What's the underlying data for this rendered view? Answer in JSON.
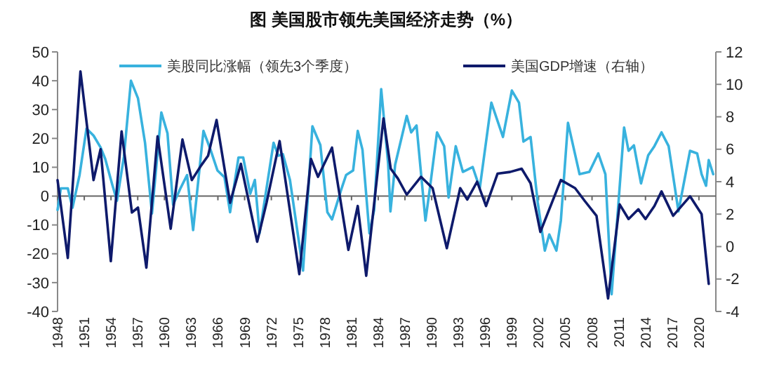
{
  "chart_data": {
    "type": "line",
    "title": "图  美国股市领先美国经济走势（%）",
    "legend": "top",
    "xlim": [
      1948,
      2021.9
    ],
    "xticks": [
      1948,
      1951,
      1954,
      1957,
      1960,
      1963,
      1966,
      1969,
      1972,
      1975,
      1978,
      1981,
      1984,
      1987,
      1990,
      1993,
      1996,
      1999,
      2002,
      2005,
      2008,
      2011,
      2014,
      2017,
      2020
    ],
    "ylim": [
      -40,
      50
    ],
    "yticks": [
      -40,
      -30,
      -20,
      -10,
      0,
      10,
      20,
      30,
      40,
      50
    ],
    "y2lim": [
      -4,
      12
    ],
    "y2ticks": [
      -4,
      -2,
      0,
      2,
      4,
      6,
      8,
      10,
      12
    ],
    "series": [
      {
        "name": "美股同比涨幅（领先3个季度）",
        "color": "#38b2de",
        "x": [
          1948.0,
          1948.37,
          1949.15,
          1949.68,
          1950.47,
          1951.25,
          1952.04,
          1952.83,
          1953.35,
          1954.14,
          1954.67,
          1955.45,
          1956.24,
          1957.03,
          1957.82,
          1958.6,
          1959.65,
          1960.34,
          1960.97,
          1961.75,
          1962.54,
          1963.22,
          1964.38,
          1965.17,
          1965.95,
          1966.74,
          1967.37,
          1968.31,
          1968.84,
          1969.63,
          1970.15,
          1970.68,
          1972.25,
          1972.78,
          1973.3,
          1974.09,
          1975.56,
          1976.61,
          1977.5,
          1978.29,
          1978.81,
          1979.86,
          1980.39,
          1981.18,
          1981.7,
          1982.23,
          1983.01,
          1983.54,
          1984.33,
          1985.11,
          1985.37,
          1985.9,
          1987.2,
          1987.7,
          1988.3,
          1989.3,
          1989.8,
          1990.6,
          1991.4,
          1991.9,
          1992.7,
          1993.5,
          1994.6,
          1995.4,
          1996.7,
          1998.0,
          1999.0,
          1999.8,
          2000.3,
          2001.1,
          2001.9,
          2002.7,
          2003.2,
          2004.0,
          2004.5,
          2005.3,
          2006.6,
          2007.7,
          2008.7,
          2009.5,
          2010.2,
          2011.6,
          2012.1,
          2012.7,
          2013.5,
          2014.3,
          2015.0,
          2015.8,
          2016.6,
          2017.7,
          2019.0,
          2019.8,
          2020.3,
          2020.8,
          2021.1,
          2021.6
        ],
        "values": [
          -4.8,
          2.7,
          2.7,
          -4,
          7.3,
          23.4,
          21,
          16.9,
          12.9,
          4,
          -1.6,
          13.7,
          40,
          33.9,
          18.5,
          -6,
          29,
          21.8,
          -3,
          2.4,
          7.3,
          -11.8,
          22.6,
          16.1,
          8.9,
          6.5,
          -5.6,
          13.4,
          13.4,
          0.8,
          5.6,
          -12.9,
          18.5,
          14,
          14.5,
          5.6,
          -25.8,
          24.2,
          17.7,
          -5.6,
          -8.1,
          2.4,
          7.3,
          8.9,
          22.6,
          16.1,
          -12.9,
          -4.8,
          37.1,
          11.3,
          -5.3,
          10.9,
          27.8,
          22.1,
          24.5,
          -8.5,
          2.8,
          22.1,
          17.3,
          -0.5,
          17.3,
          8.4,
          10.1,
          2.8,
          32.4,
          20.5,
          36.6,
          32.4,
          18.9,
          20.5,
          -2.1,
          -18.9,
          -13.3,
          -18.9,
          -8.5,
          25.4,
          7.6,
          8.4,
          14.8,
          7.6,
          -34,
          23.8,
          15.7,
          17.6,
          4.4,
          14.1,
          17.3,
          22.1,
          17.3,
          -5.3,
          15.7,
          14.8,
          7.6,
          3.6,
          12.5,
          7.6
        ]
      },
      {
        "name": "美国GDP增速（右轴）",
        "color": "#0e1a6b",
        "axis": "y2",
        "x": [
          1948.0,
          1949.15,
          1950.57,
          1952.04,
          1952.83,
          1953.98,
          1955.19,
          1956.35,
          1957.03,
          1957.97,
          1959.23,
          1960.7,
          1962.02,
          1963.07,
          1964.12,
          1964.9,
          1965.85,
          1967.37,
          1968.58,
          1970.41,
          1971.46,
          1972.93,
          1975.14,
          1976.45,
          1977.24,
          1978.81,
          1980.65,
          1981.7,
          1982.65,
          1984.59,
          1985.4,
          1986.2,
          1987.2,
          1988.8,
          1990.1,
          1991.7,
          1993.2,
          1994.0,
          1995.1,
          1996.1,
          1997.4,
          1998.8,
          2000.1,
          2001.1,
          2002.2,
          2003.2,
          2004.5,
          2006.1,
          2007.2,
          2008.5,
          2009.8,
          2011.1,
          2012.1,
          2013.2,
          2014.0,
          2015.0,
          2015.8,
          2017.1,
          2019.0,
          2020.3,
          2021.1
        ],
        "values": [
          4.1,
          -0.7,
          10.8,
          4.1,
          6.0,
          -0.9,
          7.1,
          2.1,
          2.4,
          -1.3,
          6.8,
          1.1,
          6.6,
          4.1,
          5.0,
          5.6,
          7.8,
          2.7,
          5.1,
          0.3,
          2.7,
          6.5,
          -1.7,
          5.4,
          4.3,
          6.1,
          -0.2,
          2.5,
          -1.8,
          7.9,
          4.8,
          4.2,
          3.2,
          4.3,
          3.6,
          -0.1,
          3.6,
          2.9,
          4.0,
          2.5,
          4.5,
          4.6,
          4.8,
          3.9,
          0.9,
          2.3,
          4.1,
          3.6,
          2.8,
          1.9,
          -3.2,
          2.6,
          1.7,
          2.3,
          1.7,
          2.5,
          3.4,
          1.9,
          3.1,
          2.0,
          -2.3
        ]
      }
    ]
  }
}
